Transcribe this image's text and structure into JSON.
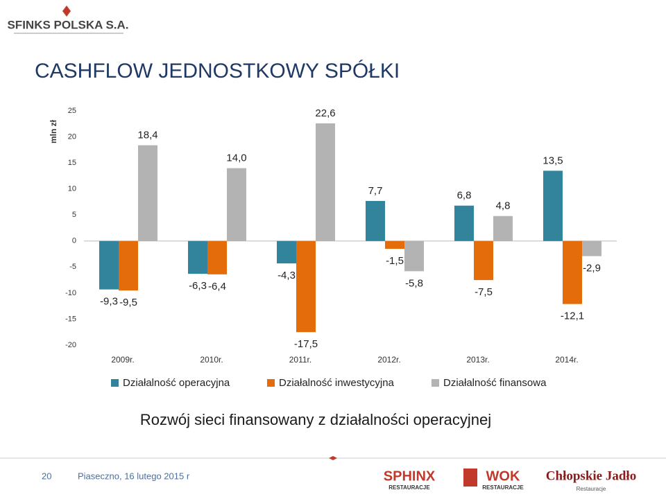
{
  "header": {
    "logo": "SFINKS POLSKA S.A.",
    "title": "CASHFLOW JEDNOSTKOWY SPÓŁKI"
  },
  "chart_data": {
    "type": "bar",
    "y_label": "mln zł",
    "categories": [
      "2009r.",
      "2010r.",
      "2011r.",
      "2012r.",
      "2013r.",
      "2014r."
    ],
    "series": [
      {
        "name": "Działalność operacyjna",
        "color": "#31849b",
        "values": [
          -9.3,
          -6.3,
          -4.3,
          7.7,
          6.8,
          13.5
        ],
        "value_labels": [
          "-9,3",
          "-6,3",
          "-4,3",
          "7,7",
          "6,8",
          "13,5"
        ]
      },
      {
        "name": "Działalność inwestycyjna",
        "color": "#e46c0a",
        "values": [
          -9.5,
          -6.4,
          -17.5,
          -1.5,
          -7.5,
          -12.1
        ],
        "value_labels": [
          "-9,5",
          "-6,4",
          "-17,5",
          "-1,5",
          "-7,5",
          "-12,1"
        ]
      },
      {
        "name": "Działalność finansowa",
        "color": "#b3b3b3",
        "values": [
          18.4,
          14.0,
          22.6,
          -5.8,
          4.8,
          -2.9
        ],
        "value_labels": [
          "18,4",
          "14,0",
          "22,6",
          "-5,8",
          "4,8",
          "-2,9"
        ]
      }
    ],
    "ylim": [
      -20,
      25
    ],
    "yticks": [
      25,
      20,
      15,
      10,
      5,
      0,
      -5,
      -10,
      -15,
      -20
    ],
    "legend": "bottom"
  },
  "caption": "Rozwój sieci finansowany z działalności operacyjnej",
  "footer": {
    "page": "20",
    "text": "Piaseczno, 16 lutego 2015 r",
    "logos": [
      {
        "name": "SPHINX",
        "sub": "RESTAURACJE"
      },
      {
        "name": "WOK",
        "sub": "RESTAURACJE"
      },
      {
        "name": "Chłopskie Jadło",
        "sub": "Restauracje"
      }
    ]
  }
}
